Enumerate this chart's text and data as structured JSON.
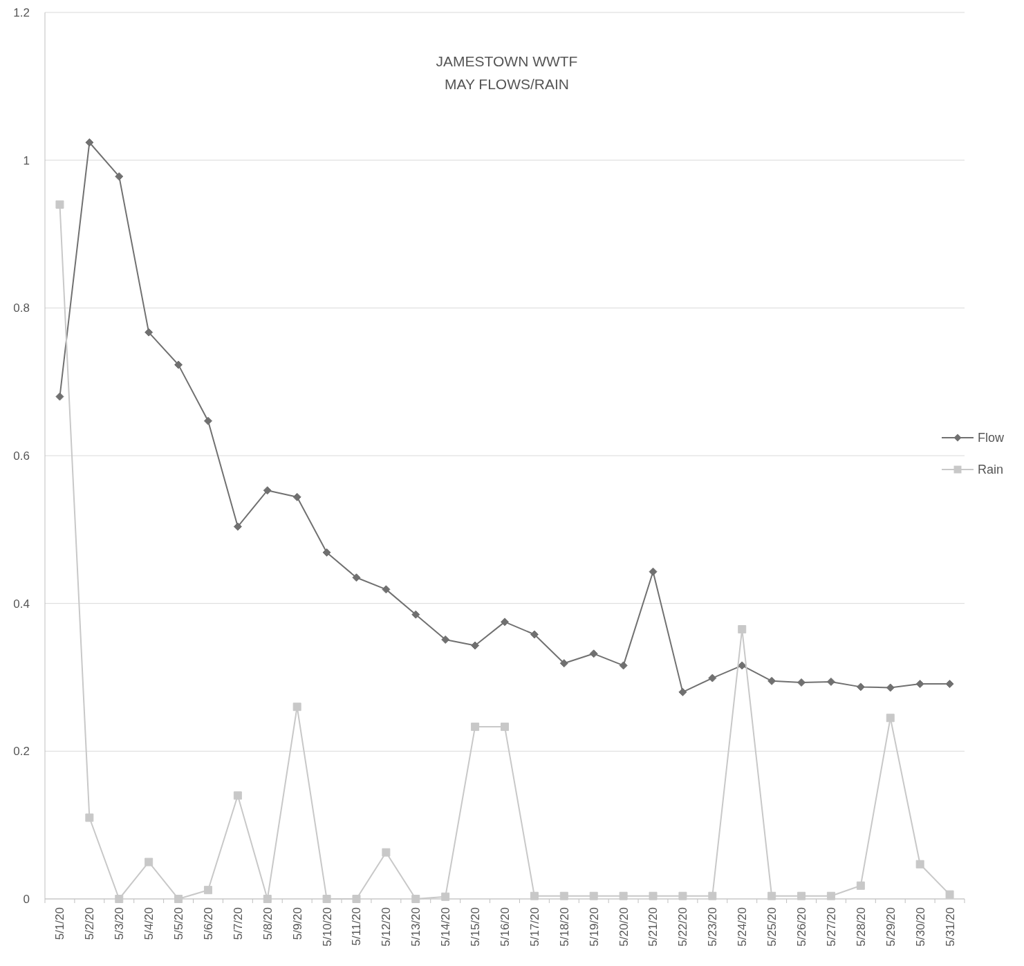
{
  "chart_data": {
    "type": "line",
    "title": "JAMESTOWN WWTF\nMAY FLOWS/RAIN",
    "categories": [
      "5/1/20",
      "5/2/20",
      "5/3/20",
      "5/4/20",
      "5/5/20",
      "5/6/20",
      "5/7/20",
      "5/8/20",
      "5/9/20",
      "5/10/20",
      "5/11/20",
      "5/12/20",
      "5/13/20",
      "5/14/20",
      "5/15/20",
      "5/16/20",
      "5/17/20",
      "5/18/20",
      "5/19/20",
      "5/20/20",
      "5/21/20",
      "5/22/20",
      "5/23/20",
      "5/24/20",
      "5/25/20",
      "5/26/20",
      "5/27/20",
      "5/28/20",
      "5/29/20",
      "5/30/20",
      "5/31/20"
    ],
    "series": [
      {
        "name": "Flow",
        "color": "#707070",
        "marker": "diamond",
        "values": [
          0.68,
          1.024,
          0.978,
          0.767,
          0.723,
          0.647,
          0.504,
          0.553,
          0.544,
          0.469,
          0.435,
          0.419,
          0.385,
          0.351,
          0.343,
          0.375,
          0.358,
          0.319,
          0.332,
          0.316,
          0.443,
          0.28,
          0.299,
          0.316,
          0.295,
          0.293,
          0.294,
          0.287,
          0.286,
          0.291,
          0.291
        ]
      },
      {
        "name": "Rain",
        "color": "#c8c8c8",
        "marker": "square",
        "values": [
          0.94,
          0.11,
          0,
          0.05,
          0,
          0.012,
          0.14,
          0,
          0.26,
          0,
          0,
          0.063,
          0,
          0.003,
          0.233,
          0.233,
          0.004,
          0.004,
          0.004,
          0.004,
          0.004,
          0.004,
          0.004,
          0.365,
          0.004,
          0.004,
          0.004,
          0.018,
          0.245,
          0.047,
          0.006
        ]
      }
    ],
    "ylim": [
      0,
      1.2
    ],
    "yticks": [
      0,
      0.2,
      0.4,
      0.6,
      0.8,
      1,
      1.2
    ],
    "grid": "y",
    "legend": "right",
    "line_style": "solid"
  }
}
